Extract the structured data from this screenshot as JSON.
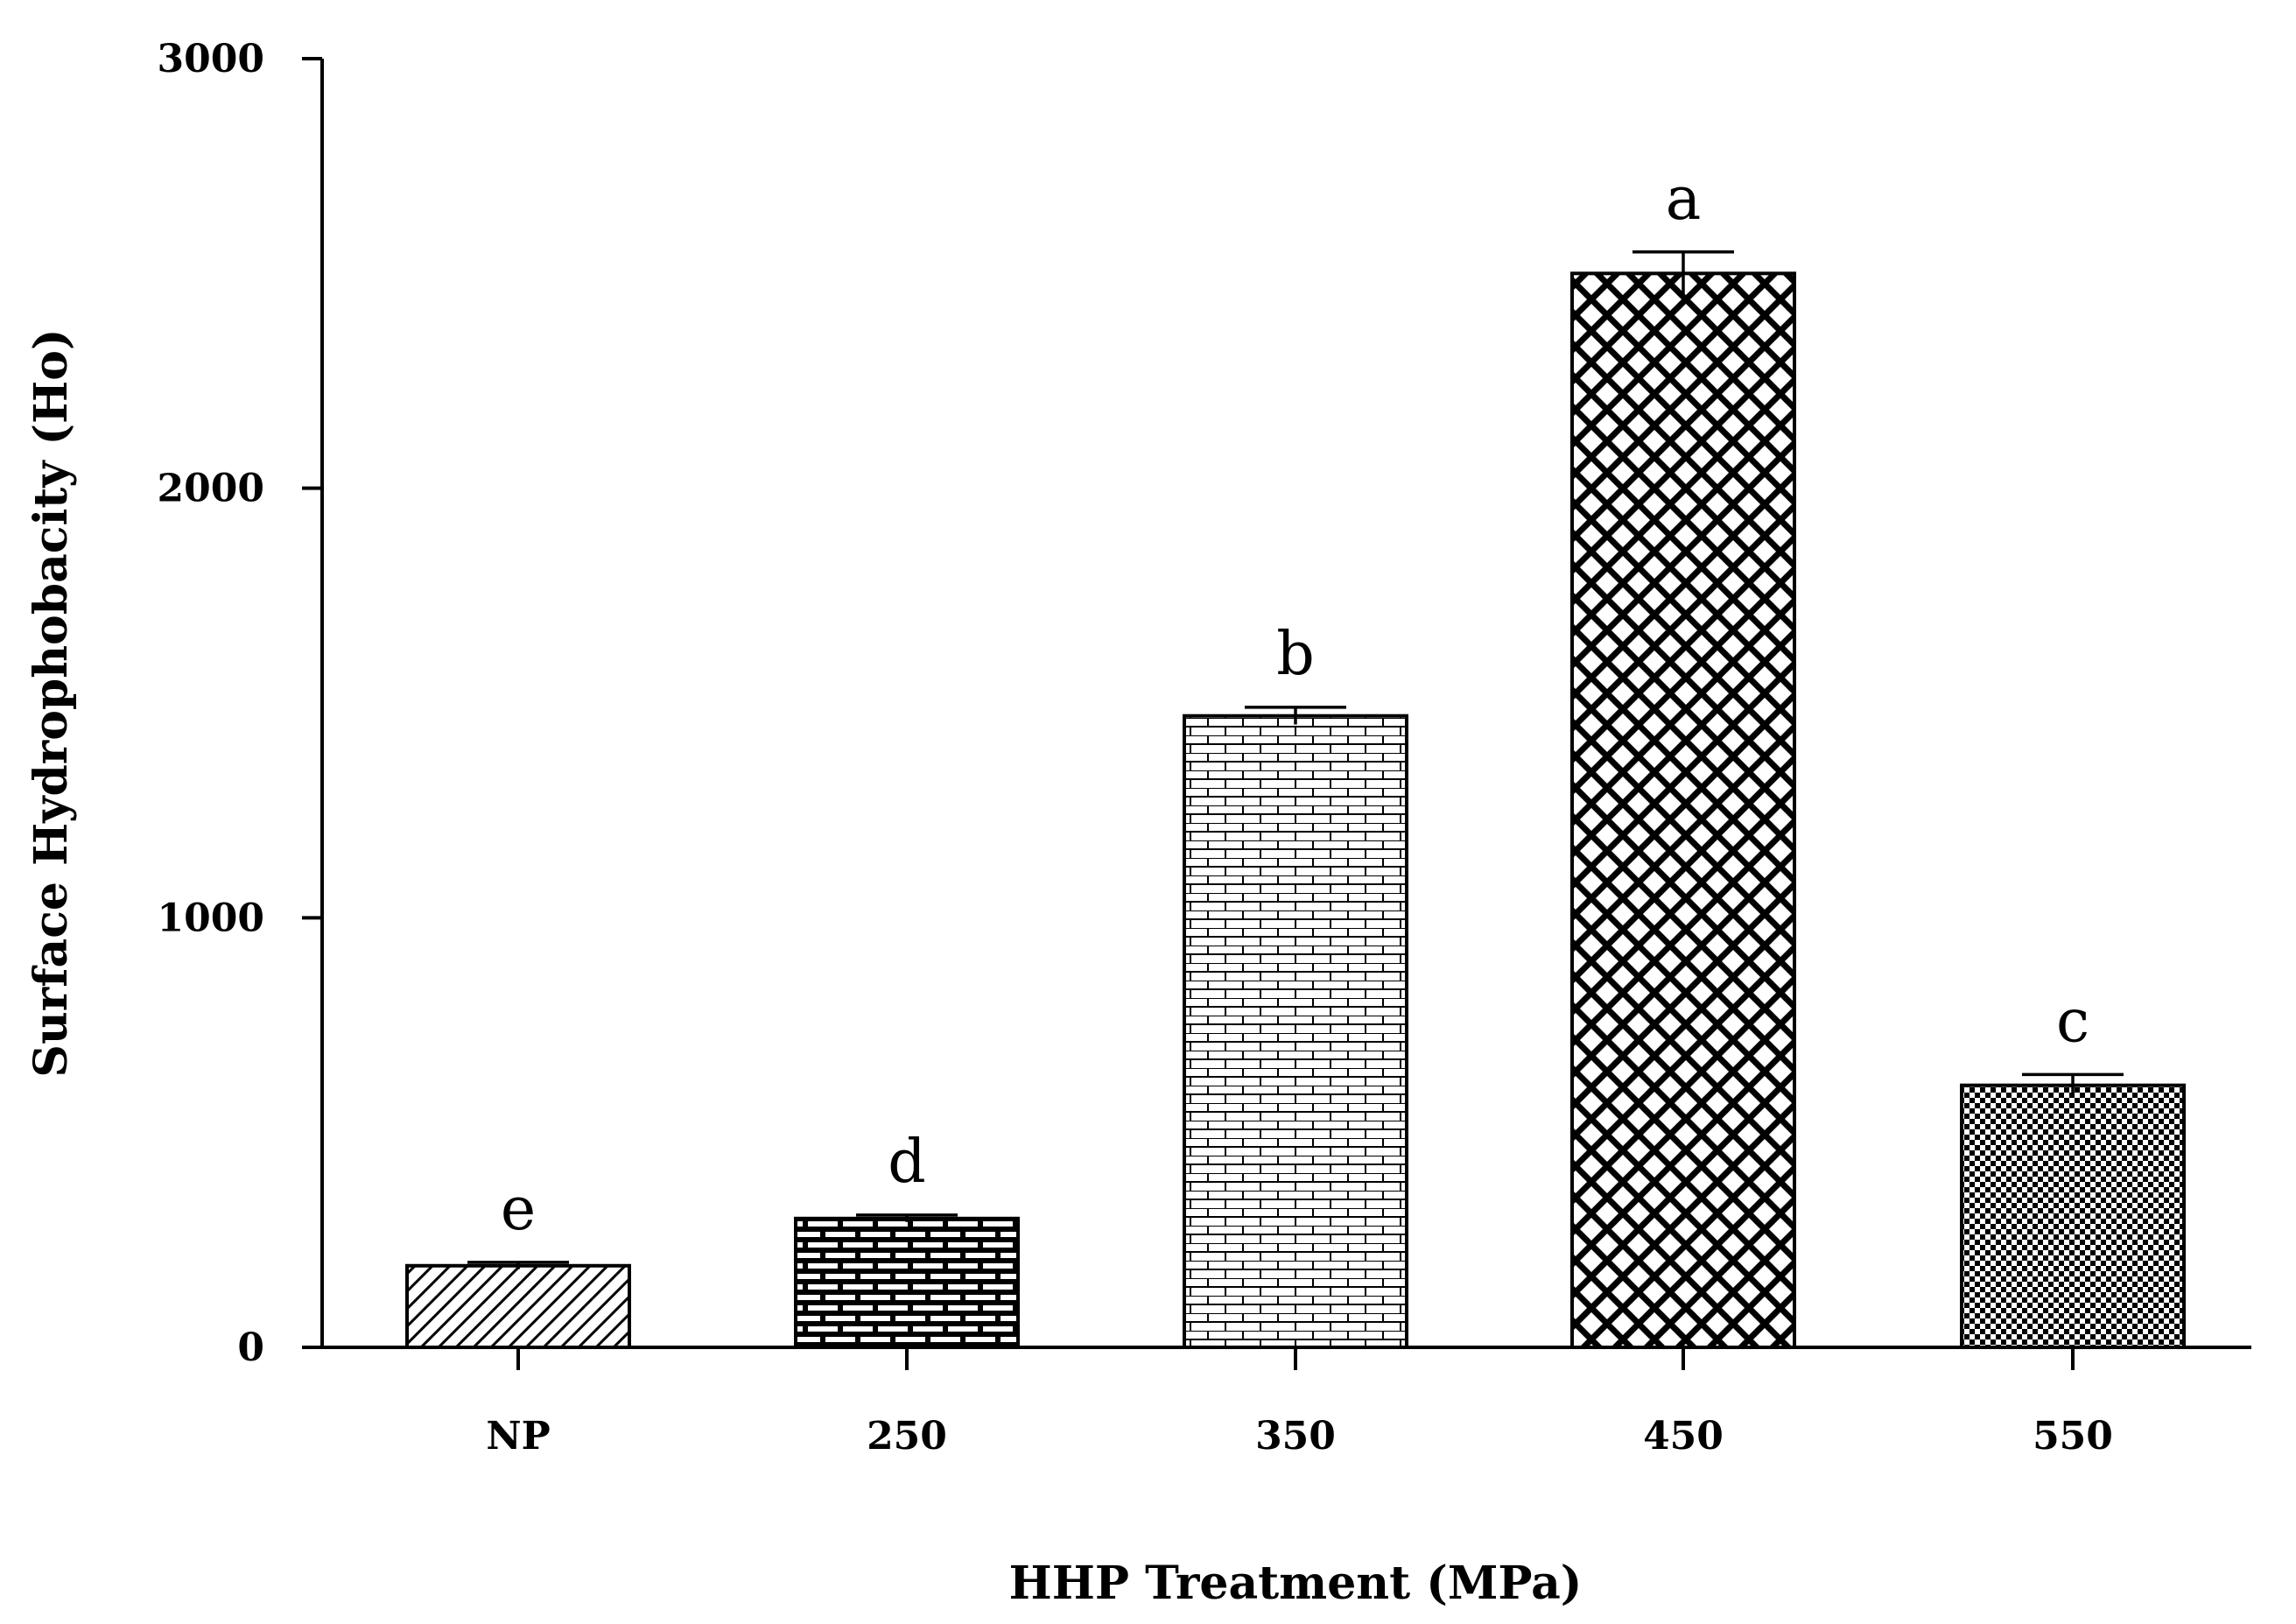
{
  "chart_data": {
    "type": "bar",
    "xlabel": "HHP Treatment (MPa)",
    "ylabel": "Surface Hydrophobacity (Ho)",
    "ylim": [
      0,
      3000
    ],
    "yticks": [
      0,
      1000,
      2000,
      3000
    ],
    "categories": [
      "NP",
      "250",
      "350",
      "450",
      "550"
    ],
    "values": [
      190,
      300,
      1470,
      2500,
      610
    ],
    "errors": [
      8,
      8,
      20,
      50,
      25
    ],
    "significance_letters": [
      "e",
      "d",
      "b",
      "a",
      "c"
    ],
    "patterns": [
      "diagonal-hatch",
      "dark-brick",
      "light-brick",
      "crosshatch",
      "checker"
    ],
    "grid": false,
    "legend": "none",
    "colors": {
      "bar_stroke": "#000000",
      "background": "#ffffff"
    }
  }
}
